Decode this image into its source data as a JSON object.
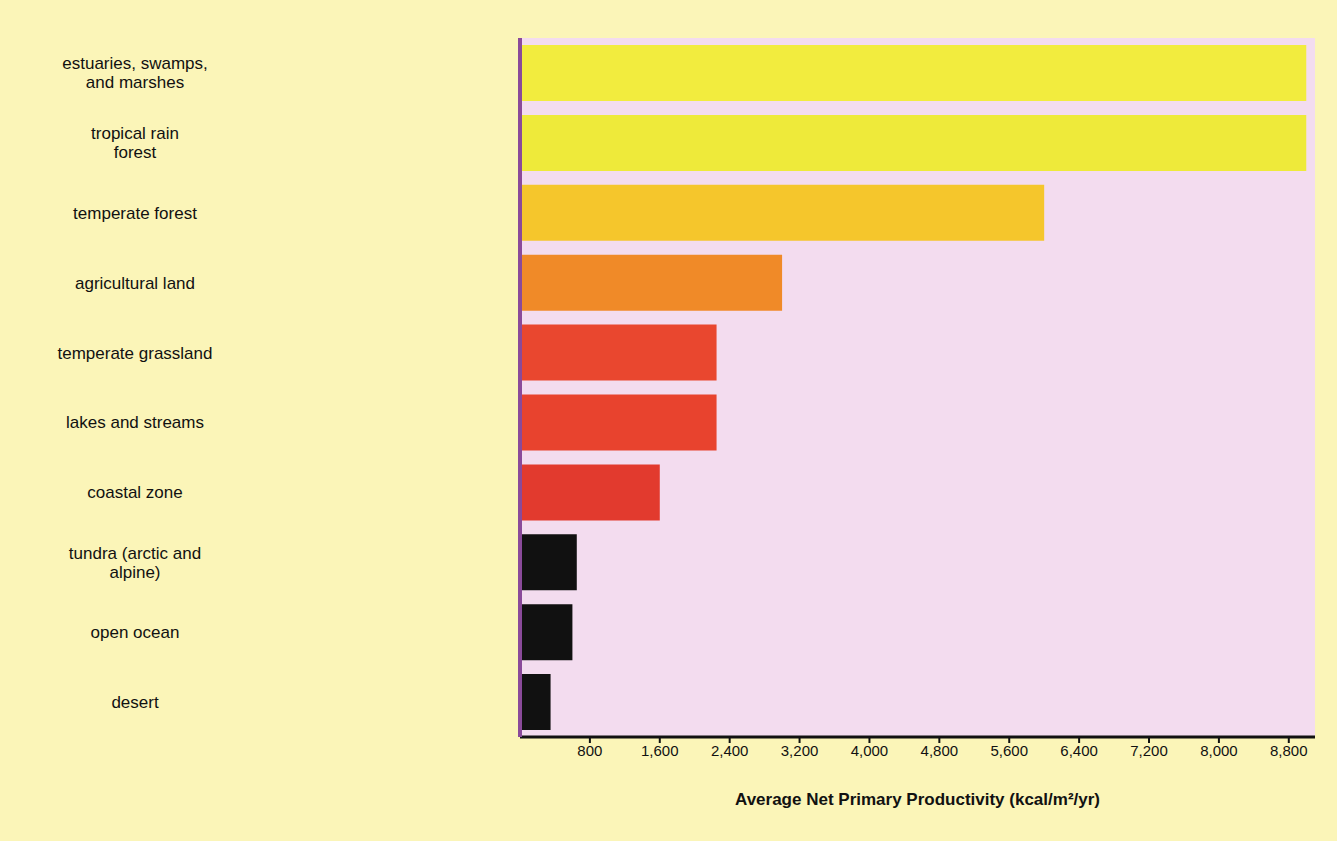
{
  "chart_data": {
    "type": "bar",
    "orientation": "horizontal",
    "categories": [
      "estuaries, swamps, and marshes",
      "tropical rain forest",
      "temperate forest",
      "agricultural land",
      "temperate grassland",
      "lakes and streams",
      "coastal zone",
      "tundra (arctic and alpine)",
      "open ocean",
      "desert"
    ],
    "values": [
      9000,
      9000,
      6000,
      3000,
      2250,
      2250,
      1600,
      650,
      600,
      350
    ],
    "colors": [
      "#f2ec3e",
      "#eeea3a",
      "#f5c62c",
      "#f08a28",
      "#e9472f",
      "#e8432e",
      "#e23a2e",
      "#111111",
      "#111111",
      "#111111"
    ],
    "x_label": "Average Net Primary Productivity (kcal/m²/yr)",
    "xlim": [
      0,
      9100
    ],
    "xticks": [
      800,
      {
        "value": 1600,
        "label": "1,600"
      },
      {
        "value": 2400,
        "label": "2,400"
      },
      {
        "value": 3200,
        "label": "3,200"
      },
      {
        "value": 4000,
        "label": "4,000"
      },
      {
        "value": 4800,
        "label": "4,800"
      },
      {
        "value": 5600,
        "label": "5,600"
      },
      {
        "value": 6400,
        "label": "6,400"
      },
      {
        "value": 7200,
        "label": "7,200"
      },
      {
        "value": 8000,
        "label": "8,000"
      },
      {
        "value": 8800,
        "label": "8,800"
      }
    ],
    "grid": false
  }
}
